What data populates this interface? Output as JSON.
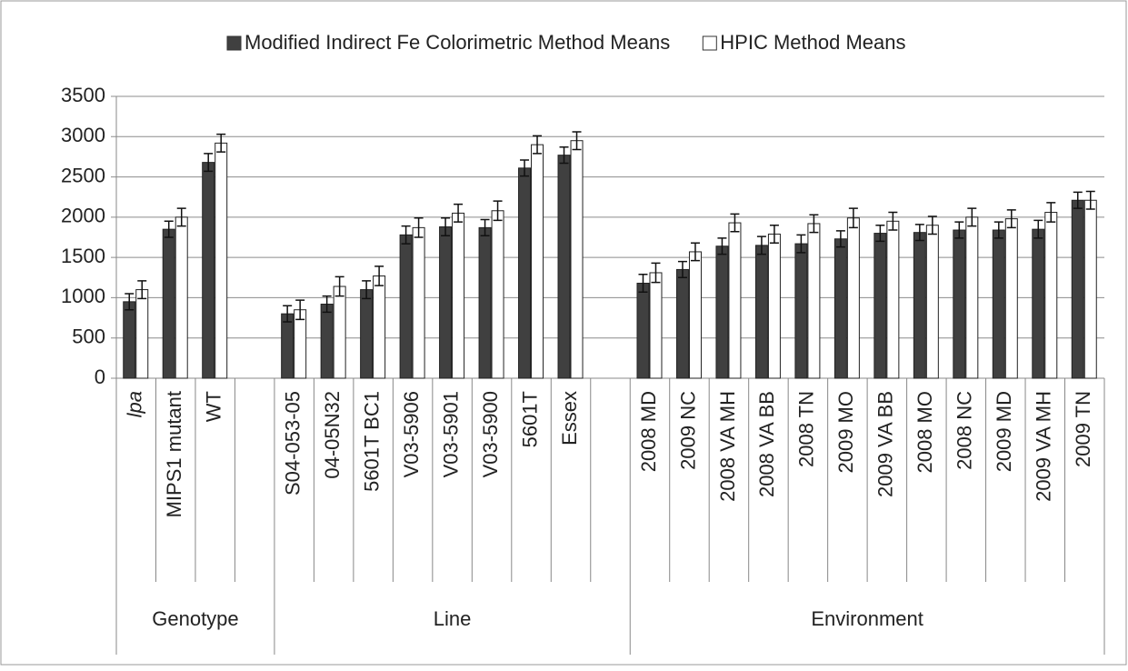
{
  "chart_data": {
    "type": "bar",
    "groups": [
      {
        "label": "Genotype",
        "categories": [
          "lpa",
          "MIPS1 mutant",
          "WT",
          null
        ]
      },
      {
        "label": "Line",
        "categories": [
          "S04-053-05",
          "04-05N32",
          "5601T BC1",
          "V03-5906",
          "V03-5901",
          "V03-5900",
          "5601T",
          "Essex",
          null
        ]
      },
      {
        "label": "Environment",
        "categories": [
          "2008 MD",
          "2009 NC",
          "2008 VA MH",
          "2008 VA BB",
          "2008 TN",
          "2009 MO",
          "2009 VA BB",
          "2008 MO",
          "2008 NC",
          "2009 MD",
          "2009 VA MH",
          "2009 TN"
        ]
      }
    ],
    "series": [
      {
        "name": "Modified Indirect Fe Colorimetric Method Means",
        "color": "#404040",
        "values": [
          950,
          1850,
          2680,
          null,
          800,
          920,
          1100,
          1780,
          1880,
          1870,
          2610,
          2770,
          null,
          1180,
          1350,
          1640,
          1650,
          1670,
          1730,
          1800,
          1810,
          1840,
          1840,
          1850,
          2210
        ],
        "errors": [
          100,
          100,
          110,
          null,
          100,
          100,
          110,
          110,
          110,
          100,
          100,
          100,
          null,
          110,
          100,
          100,
          110,
          110,
          100,
          100,
          100,
          100,
          100,
          110,
          100
        ]
      },
      {
        "name": "HPIC Method Means",
        "color": "#ffffff",
        "values": [
          1100,
          2000,
          2920,
          null,
          850,
          1140,
          1270,
          1870,
          2050,
          2080,
          2900,
          2950,
          null,
          1310,
          1570,
          1930,
          1790,
          1920,
          1990,
          1950,
          1900,
          2000,
          1980,
          2060,
          2210
        ],
        "errors": [
          110,
          110,
          110,
          null,
          120,
          120,
          120,
          120,
          110,
          120,
          110,
          110,
          null,
          120,
          110,
          110,
          110,
          110,
          120,
          110,
          110,
          110,
          110,
          120,
          110
        ]
      }
    ],
    "ylim": [
      0,
      3500
    ],
    "yticks": [
      0,
      500,
      1000,
      1500,
      2000,
      2500,
      3000,
      3500
    ],
    "grid": true,
    "legend": "top"
  }
}
